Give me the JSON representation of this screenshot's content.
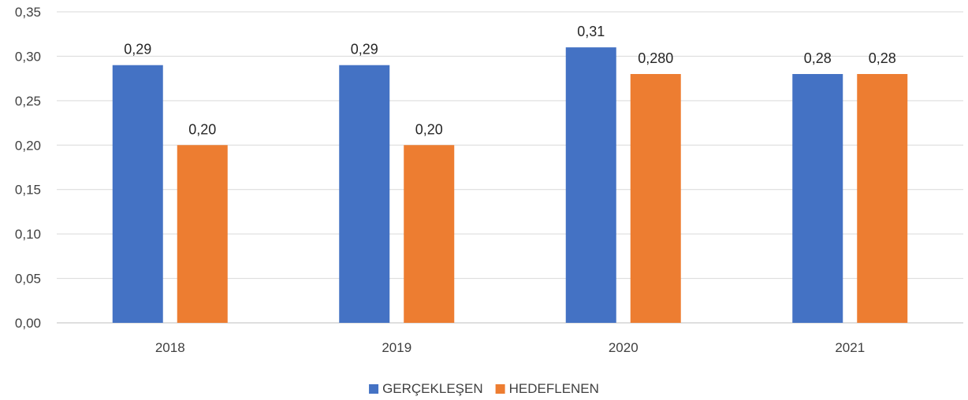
{
  "chart_data": {
    "type": "bar",
    "title": "",
    "xlabel": "",
    "ylabel": "",
    "categories": [
      "2018",
      "2019",
      "2020",
      "2021"
    ],
    "y_ticks": [
      "0,00",
      "0,05",
      "0,10",
      "0,15",
      "0,20",
      "0,25",
      "0,30",
      "0,35"
    ],
    "ylim": [
      0,
      0.35
    ],
    "grid": true,
    "legend_position": "bottom",
    "series": [
      {
        "name": "GERÇEKLEŞEN",
        "color": "#4472C4",
        "values": [
          0.29,
          0.29,
          0.31,
          0.28
        ],
        "labels": [
          "0,29",
          "0,29",
          "0,31",
          "0,28"
        ]
      },
      {
        "name": "HEDEFLENEN",
        "color": "#ED7D31",
        "values": [
          0.2,
          0.2,
          0.28,
          0.28
        ],
        "labels": [
          "0,20",
          "0,20",
          "0,280",
          "0,28"
        ]
      }
    ]
  }
}
